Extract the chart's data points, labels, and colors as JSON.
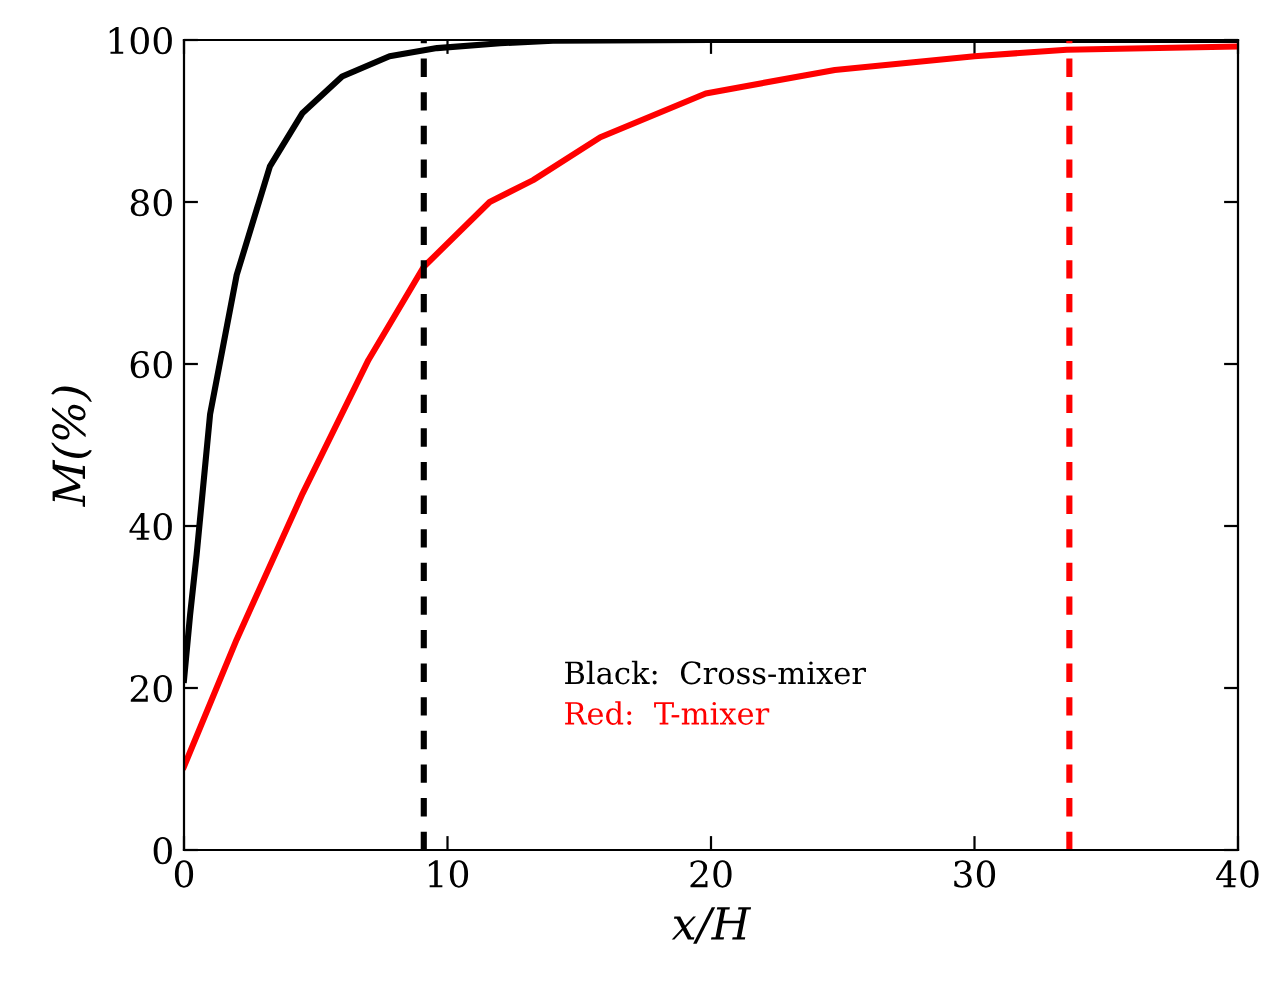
{
  "chart_data": {
    "type": "line",
    "xlabel": "x/H",
    "ylabel": "M(%)",
    "xlim": [
      0,
      40
    ],
    "xticks": [
      0,
      10,
      20,
      30,
      40
    ],
    "ylim": [
      0,
      100
    ],
    "yticks": [
      0,
      20,
      40,
      60,
      80,
      100
    ],
    "grid": false,
    "legend": false,
    "line_style": "solid",
    "series": [
      {
        "color": "#000000",
        "x": [
          0,
          0.23,
          0.48,
          0.99,
          2.0,
          3.26,
          4.5,
          6.0,
          7.8,
          9.6,
          12,
          14,
          20,
          30,
          40
        ],
        "values": [
          21,
          29,
          36.5,
          53.8,
          71,
          84.4,
          91,
          95.5,
          98,
          99,
          99.6,
          99.9,
          100,
          100,
          100
        ]
      },
      {
        "color": "#ff0000",
        "x": [
          0,
          2.0,
          4.5,
          7.0,
          9.1,
          11.6,
          13.25,
          15.8,
          19.8,
          24.7,
          30,
          33.5,
          40
        ],
        "values": [
          10.3,
          26,
          44,
          60.5,
          72,
          80,
          82.7,
          88,
          93.4,
          96.3,
          98,
          98.8,
          99.2
        ]
      }
    ],
    "ref_lines": [
      {
        "axis": "x",
        "value": 9.1,
        "color": "#000000",
        "line_style": "dashed"
      },
      {
        "axis": "x",
        "value": 33.6,
        "color": "#ff0000",
        "line_style": "dashed"
      }
    ],
    "annotations": [
      "Black:  Cross-mixer",
      "Red:  T-mixer"
    ]
  }
}
